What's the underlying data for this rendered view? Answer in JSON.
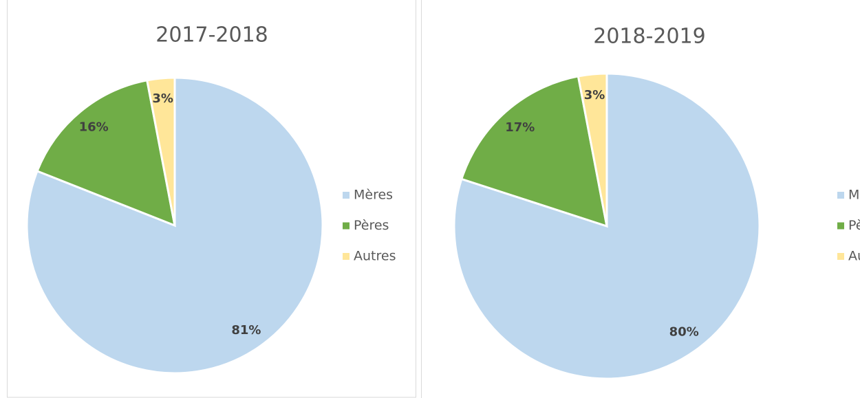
{
  "chart_data": [
    {
      "type": "pie",
      "title": "2017-2018",
      "categories": [
        "Mères",
        "Pères",
        "Autres"
      ],
      "values": [
        81,
        16,
        3
      ],
      "value_labels": [
        "81%",
        "16%",
        "3%"
      ],
      "colors": [
        "#bdd7ee",
        "#70ad47",
        "#ffe699"
      ],
      "legend": "right"
    },
    {
      "type": "pie",
      "title": "2018-2019",
      "categories": [
        "Mères",
        "Pères",
        "Autres"
      ],
      "values": [
        80,
        17,
        3
      ],
      "value_labels": [
        "80%",
        "17%",
        "3%"
      ],
      "colors": [
        "#bdd7ee",
        "#70ad47",
        "#ffe699"
      ],
      "legend": "right"
    }
  ]
}
